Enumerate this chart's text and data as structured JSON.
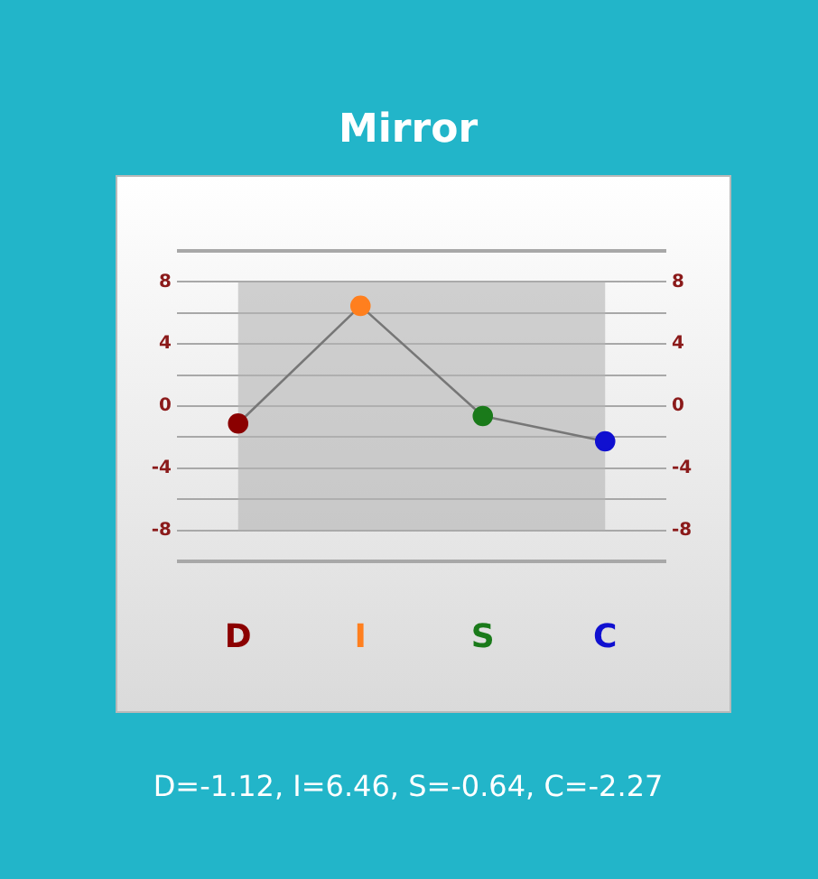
{
  "chart_data": {
    "type": "line",
    "title": "Mirror",
    "categories": [
      "D",
      "I",
      "S",
      "C"
    ],
    "series": [
      {
        "color": "#777777",
        "colors": [
          "#8b0000",
          "#ff7f1e",
          "#1a7a1a",
          "#1010d0"
        ],
        "values": [
          -1.12,
          6.46,
          -0.64,
          -2.27
        ]
      }
    ],
    "ylim": [
      -10,
      10
    ],
    "yticks": [
      {
        "value": -10,
        "label": null
      },
      -8,
      {
        "value": -6,
        "label": null
      },
      -4,
      {
        "value": -2,
        "label": null
      },
      0,
      {
        "value": 2,
        "label": null
      },
      4,
      {
        "value": 6,
        "label": null
      },
      8,
      {
        "value": 10,
        "label": null
      }
    ],
    "y2lim": [
      -10,
      10
    ],
    "y2ticks": [
      {
        "value": -10,
        "label": null
      },
      -8,
      {
        "value": -6,
        "label": null
      },
      -4,
      {
        "value": -2,
        "label": null
      },
      0,
      {
        "value": 2,
        "label": null
      },
      4,
      {
        "value": 6,
        "label": null
      },
      8,
      {
        "value": 10,
        "label": null
      }
    ],
    "bands": [
      {
        "axis": "y",
        "from": -8,
        "to": 8,
        "color": "#b4b4b4"
      }
    ],
    "grid": "y",
    "marker": "circle",
    "line_style": "solid",
    "legend": false,
    "annotations": [
      "D=-1.12, I=6.46, S=-0.64, C=-2.27"
    ]
  }
}
